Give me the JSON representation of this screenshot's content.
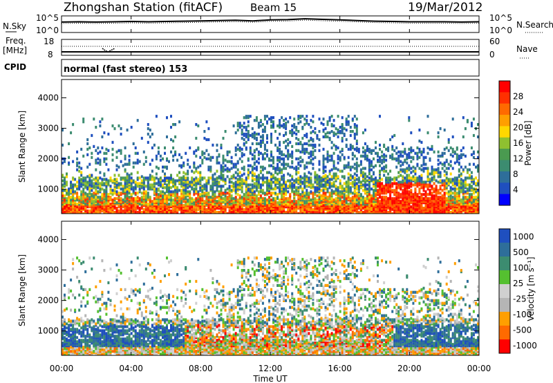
{
  "header": {
    "station_title": "Zhongshan Station (fitACF)",
    "beam_label": "Beam 15",
    "date": "19/Mar/2012"
  },
  "noise_panel": {
    "left_label": "N.Sky",
    "right_label": "N.Search",
    "tick_top_left": "10^5",
    "tick_bottom_left": "10^0",
    "tick_top_right": "10^5",
    "tick_bottom_right": "10^0"
  },
  "freq_panel": {
    "left_label_1": "Freq.",
    "left_label_2": "[MHz]",
    "tick_top_left": "18",
    "tick_bottom_left": "8",
    "tick_top_right": "60",
    "tick_bottom_right": "0",
    "right_label": "Nave"
  },
  "cpid": {
    "label": "CPID",
    "text": "normal (fast stereo) 153"
  },
  "colors": {
    "power_scale": [
      "#0000ff",
      "#1f4fbf",
      "#2e6e9a",
      "#3c8c70",
      "#4a9a50",
      "#8fc030",
      "#ffd700",
      "#ff9f00",
      "#ff6a00",
      "#ff3000",
      "#ff0000"
    ],
    "velocity_scale": [
      "#ff0000",
      "#ff6a00",
      "#ff9f00",
      "#b5b5b5",
      "#d0d0d0",
      "#55c030",
      "#3c8c70",
      "#2e6e9a",
      "#1f4fbf"
    ]
  },
  "chart_data": [
    {
      "type": "heatmap",
      "ylabel": "Slant Range [km]",
      "yticks": [
        "1000",
        "2000",
        "3000",
        "4000"
      ],
      "xticks": [
        "00:00",
        "04:00",
        "08:00",
        "12:00",
        "16:00",
        "20:00",
        "00:00"
      ],
      "colorbar_label": "Power [dB]",
      "colorbar_ticks": [
        "4",
        "8",
        "12",
        "16",
        "20",
        "24",
        "28"
      ],
      "ylim": [
        200,
        4600
      ],
      "xlim_hours": [
        0,
        24
      ],
      "series": [
        {
          "range_km": [
            200,
            900
          ],
          "dominant": "high power (red/orange)",
          "time_hours": [
            0,
            24
          ]
        },
        {
          "range_km": [
            900,
            1600
          ],
          "dominant": "medium (green/blue)",
          "time_hours": [
            0,
            24
          ]
        },
        {
          "range_km": [
            1600,
            3400
          ],
          "dominant": "low (blue)",
          "time_hours": [
            6,
            23
          ]
        }
      ]
    },
    {
      "type": "heatmap",
      "ylabel": "Slant Range [km]",
      "yticks": [
        "1000",
        "2000",
        "3000",
        "4000"
      ],
      "xticks": [
        "00:00",
        "04:00",
        "08:00",
        "12:00",
        "16:00",
        "20:00",
        "00:00"
      ],
      "xlabel": "Time UT",
      "colorbar_label": "Velocity [m s⁻¹]",
      "colorbar_ticks": [
        "1000",
        "500",
        "100",
        "25",
        "-25",
        "-100",
        "-500",
        "-1000"
      ],
      "ylim": [
        200,
        4600
      ],
      "xlim_hours": [
        0,
        24
      ]
    },
    {
      "type": "line",
      "series": [
        {
          "name": "N.Sky",
          "values_log10": [
            3.2,
            3.3,
            3.2,
            3.3,
            3.4,
            3.3,
            3.4,
            3.5,
            3.6,
            3.7,
            3.8,
            3.6,
            3.9,
            4.0,
            4.3,
            4.1,
            3.9,
            3.7,
            3.5,
            3.4,
            3.3,
            3.3,
            3.3,
            3.2,
            3.3
          ]
        }
      ],
      "x_hours": [
        0,
        1,
        2,
        3,
        4,
        5,
        6,
        7,
        8,
        9,
        10,
        11,
        12,
        13,
        14,
        15,
        16,
        17,
        18,
        19,
        20,
        21,
        22,
        23,
        24
      ]
    }
  ]
}
